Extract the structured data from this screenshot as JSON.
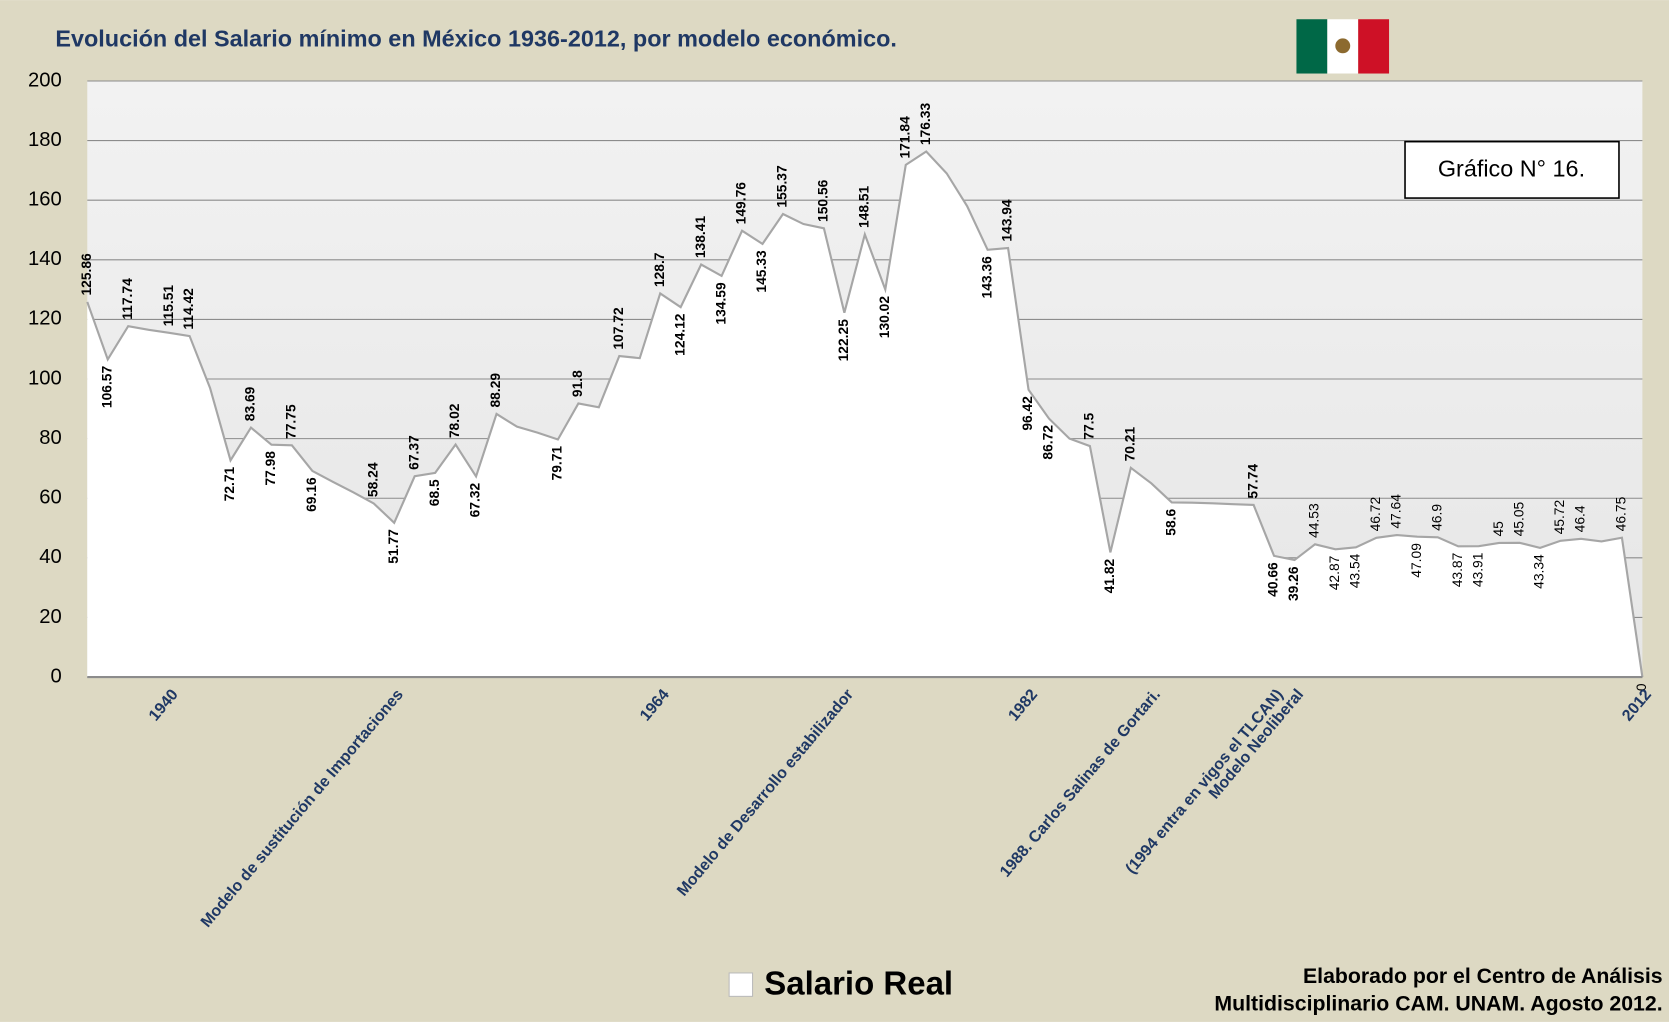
{
  "chart_data": {
    "type": "area",
    "title": "Evolución del Salario mínimo en México 1936-2012, por modelo económico.",
    "annotation": "Gráfico N° 16.",
    "source": [
      "Elaborado por el Centro de Análisis",
      "Multidisciplinario CAM. UNAM. Agosto 2012."
    ],
    "categories": [
      null,
      null,
      null,
      null,
      "1940",
      null,
      null,
      null,
      null,
      null,
      null,
      null,
      null,
      null,
      null,
      "Modelo de sustitución de Importaciones",
      null,
      null,
      null,
      null,
      null,
      null,
      null,
      null,
      null,
      null,
      null,
      null,
      "1964",
      null,
      null,
      null,
      null,
      null,
      null,
      null,
      null,
      "Modelo de Desarrollo estabilizador",
      null,
      null,
      null,
      null,
      null,
      null,
      null,
      null,
      "1982",
      null,
      null,
      null,
      null,
      null,
      "1988. Carlos Salinas de Gortari.",
      null,
      null,
      null,
      null,
      null,
      "(1994 entra en vigos el TLCAN)",
      "Modelo Neoliberal",
      null,
      null,
      null,
      null,
      null,
      null,
      null,
      null,
      null,
      null,
      null,
      null,
      null,
      null,
      null,
      null,
      "2012"
    ],
    "series": [
      {
        "name": "Salario Real",
        "color": "#ffffff",
        "line_color": "#a6a6a6",
        "values": [
          125.86,
          106.57,
          117.74,
          116.5,
          115.51,
          114.42,
          97,
          72.71,
          83.69,
          77.98,
          77.75,
          69.16,
          65.5,
          62,
          58.24,
          51.77,
          67.37,
          68.5,
          78.02,
          67.32,
          88.29,
          84,
          82,
          79.71,
          91.8,
          90.5,
          107.72,
          107,
          128.7,
          124.12,
          138.41,
          134.59,
          149.76,
          145.33,
          155.37,
          152,
          150.56,
          122.25,
          148.51,
          130.02,
          171.84,
          176.33,
          169,
          158,
          143.36,
          143.94,
          96.42,
          86.72,
          80,
          77.5,
          41.82,
          70.21,
          65,
          58.6,
          58.5,
          58.3,
          58,
          57.74,
          40.66,
          39.26,
          44.53,
          42.87,
          43.54,
          46.72,
          47.64,
          47.09,
          46.9,
          43.87,
          43.91,
          45,
          45.05,
          43.34,
          45.72,
          46.4,
          45.5,
          46.75,
          0
        ],
        "value_labels": [
          "125.86",
          "106.57",
          "117.74",
          null,
          "115.51",
          "114.42",
          null,
          "72.71",
          "83.69",
          "77.98",
          "77.75",
          "69.16",
          null,
          null,
          "58.24",
          "51.77",
          "67.37",
          "68.5",
          "78.02",
          "67.32",
          "88.29",
          null,
          null,
          "79.71",
          "91.8",
          null,
          "107.72",
          null,
          "128.7",
          "124.12",
          "138.41",
          "134.59",
          "149.76",
          "145.33",
          "155.37",
          null,
          "150.56",
          "122.25",
          "148.51",
          "130.02",
          "171.84",
          "176.33",
          null,
          null,
          "143.36",
          "143.94",
          "96.42",
          "86.72",
          null,
          "77.5",
          "41.82",
          "70.21",
          null,
          "58.6",
          null,
          null,
          null,
          "57.74",
          "40.66",
          "39.26",
          "44.53",
          "42.87",
          "43.54",
          "46.72",
          "47.64",
          "47.09",
          "46.9",
          "43.87",
          "43.91",
          "45",
          "45.05",
          "43.34",
          "45.72",
          "46.4",
          null,
          "46.75",
          "0"
        ]
      }
    ],
    "ylim": [
      0,
      200
    ],
    "yticks": [
      0,
      20,
      40,
      60,
      80,
      100,
      120,
      140,
      160,
      180,
      200
    ],
    "grid": true
  }
}
